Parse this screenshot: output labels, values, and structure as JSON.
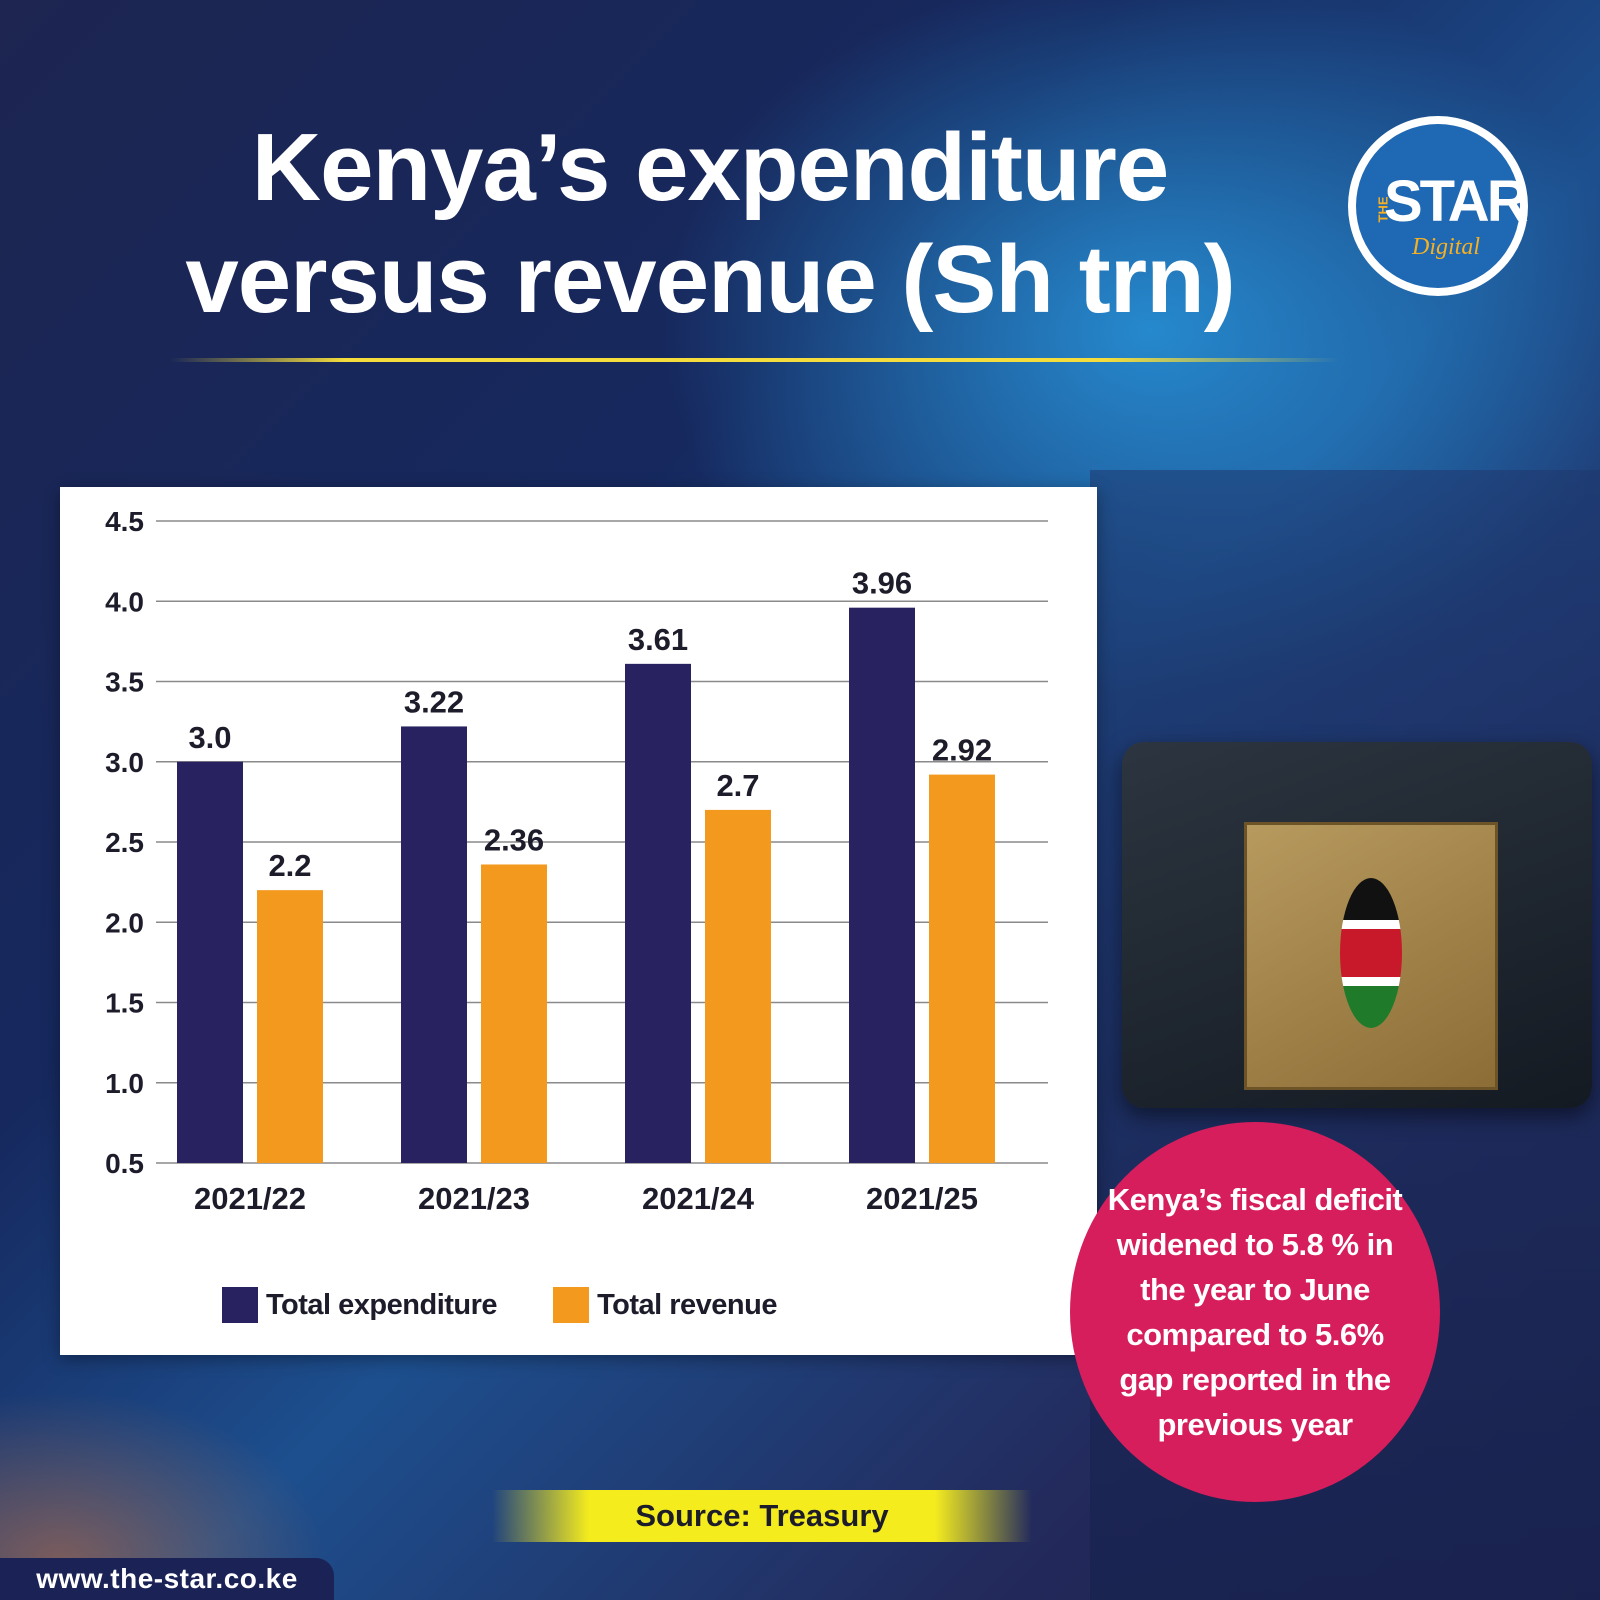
{
  "title": "Kenya’s expenditure versus revenue (Sh trn)",
  "logo": {
    "the": "THE",
    "star": "STAR",
    "digital": "Digital"
  },
  "chart_data": {
    "type": "bar",
    "title": "Kenya’s expenditure versus revenue (Sh trn)",
    "xlabel": "",
    "ylabel": "",
    "categories": [
      "2021/22",
      "2021/23",
      "2021/24",
      "2021/25"
    ],
    "series": [
      {
        "name": "Total expenditure",
        "color": "#282360",
        "values": [
          3.0,
          3.22,
          3.61,
          3.96
        ],
        "labels": [
          "3.0",
          "3.22",
          "3.61",
          "3.96"
        ]
      },
      {
        "name": "Total revenue",
        "color": "#f39a1e",
        "values": [
          2.2,
          2.36,
          2.7,
          2.92
        ],
        "labels": [
          "2.2",
          "2.36",
          "2.7",
          "2.92"
        ]
      }
    ],
    "ylim": [
      0.5,
      4.5
    ],
    "yticks": [
      "4.5",
      "4.0",
      "3.5",
      "3.0",
      "2.5",
      "2.0",
      "1.5",
      "1.0",
      "0.5"
    ],
    "grid": true,
    "legend_position": "bottom-left"
  },
  "note": "Kenya’s fiscal deficit widened to 5.8 % in the year to June compared to 5.6% gap reported in the previous year",
  "source": "Source: Treasury",
  "website": "www.the-star.co.ke",
  "colors": {
    "accent_pink": "#d61e5c",
    "source_yellow": "#f5ec1e",
    "title_rule": "#f4dd3c"
  }
}
